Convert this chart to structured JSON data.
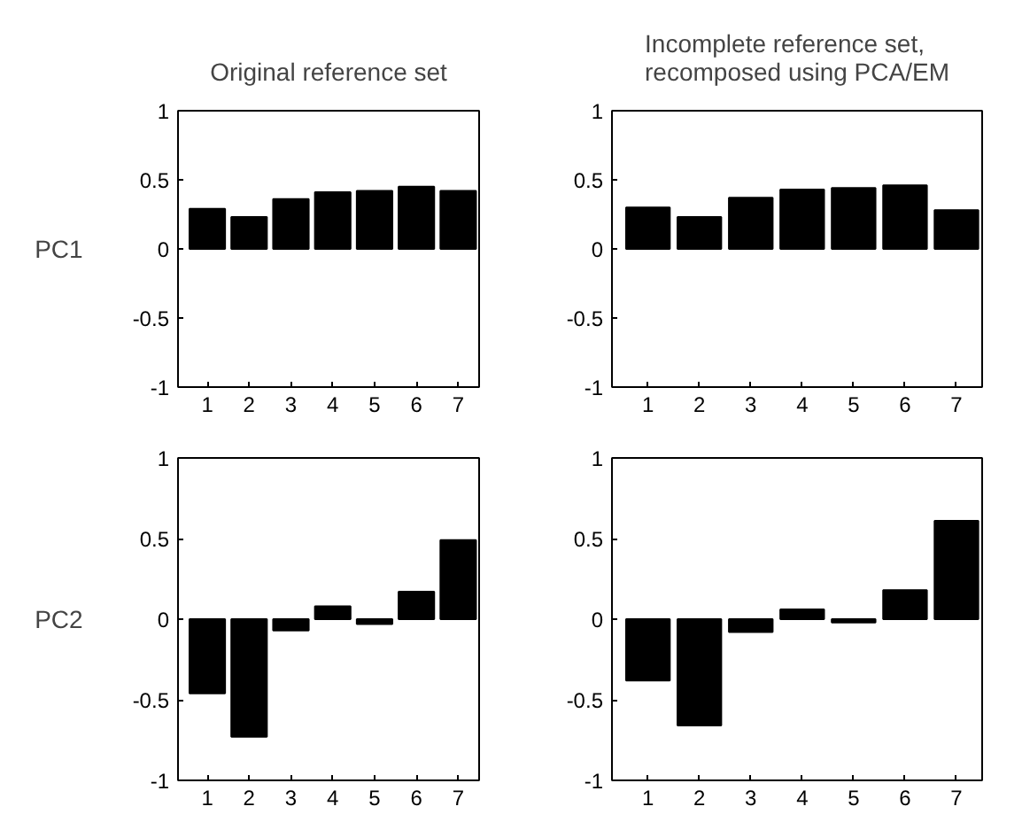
{
  "chart_data": [
    {
      "type": "bar",
      "title": "Original reference set",
      "ylabel": "PC1",
      "categories": [
        "1",
        "2",
        "3",
        "4",
        "5",
        "6",
        "7"
      ],
      "values": [
        0.29,
        0.23,
        0.36,
        0.41,
        0.42,
        0.45,
        0.42
      ],
      "color": "#000000",
      "ylim": [
        -1,
        1
      ],
      "yticks": [
        -1,
        -0.5,
        0,
        0.5,
        1
      ],
      "grid": false,
      "legend": false
    },
    {
      "type": "bar",
      "title": "Incomplete reference set,\nrecomposed using PCA/EM",
      "categories": [
        "1",
        "2",
        "3",
        "4",
        "5",
        "6",
        "7"
      ],
      "values": [
        0.3,
        0.23,
        0.37,
        0.43,
        0.44,
        0.46,
        0.28
      ],
      "color": "#000000",
      "ylim": [
        -1,
        1
      ],
      "yticks": [
        -1,
        -0.5,
        0,
        0.5,
        1
      ],
      "grid": false,
      "legend": false
    },
    {
      "type": "bar",
      "ylabel": "PC2",
      "categories": [
        "1",
        "2",
        "3",
        "4",
        "5",
        "6",
        "7"
      ],
      "values": [
        -0.46,
        -0.73,
        -0.07,
        0.08,
        -0.03,
        0.17,
        0.49
      ],
      "color": "#000000",
      "ylim": [
        -1,
        1
      ],
      "yticks": [
        -1,
        -0.5,
        0,
        0.5,
        1
      ],
      "grid": false,
      "legend": false
    },
    {
      "type": "bar",
      "categories": [
        "1",
        "2",
        "3",
        "4",
        "5",
        "6",
        "7"
      ],
      "values": [
        -0.38,
        -0.66,
        -0.08,
        0.06,
        -0.02,
        0.18,
        0.61
      ],
      "color": "#000000",
      "ylim": [
        -1,
        1
      ],
      "yticks": [
        -1,
        -0.5,
        0,
        0.5,
        1
      ],
      "grid": false,
      "legend": false
    }
  ]
}
